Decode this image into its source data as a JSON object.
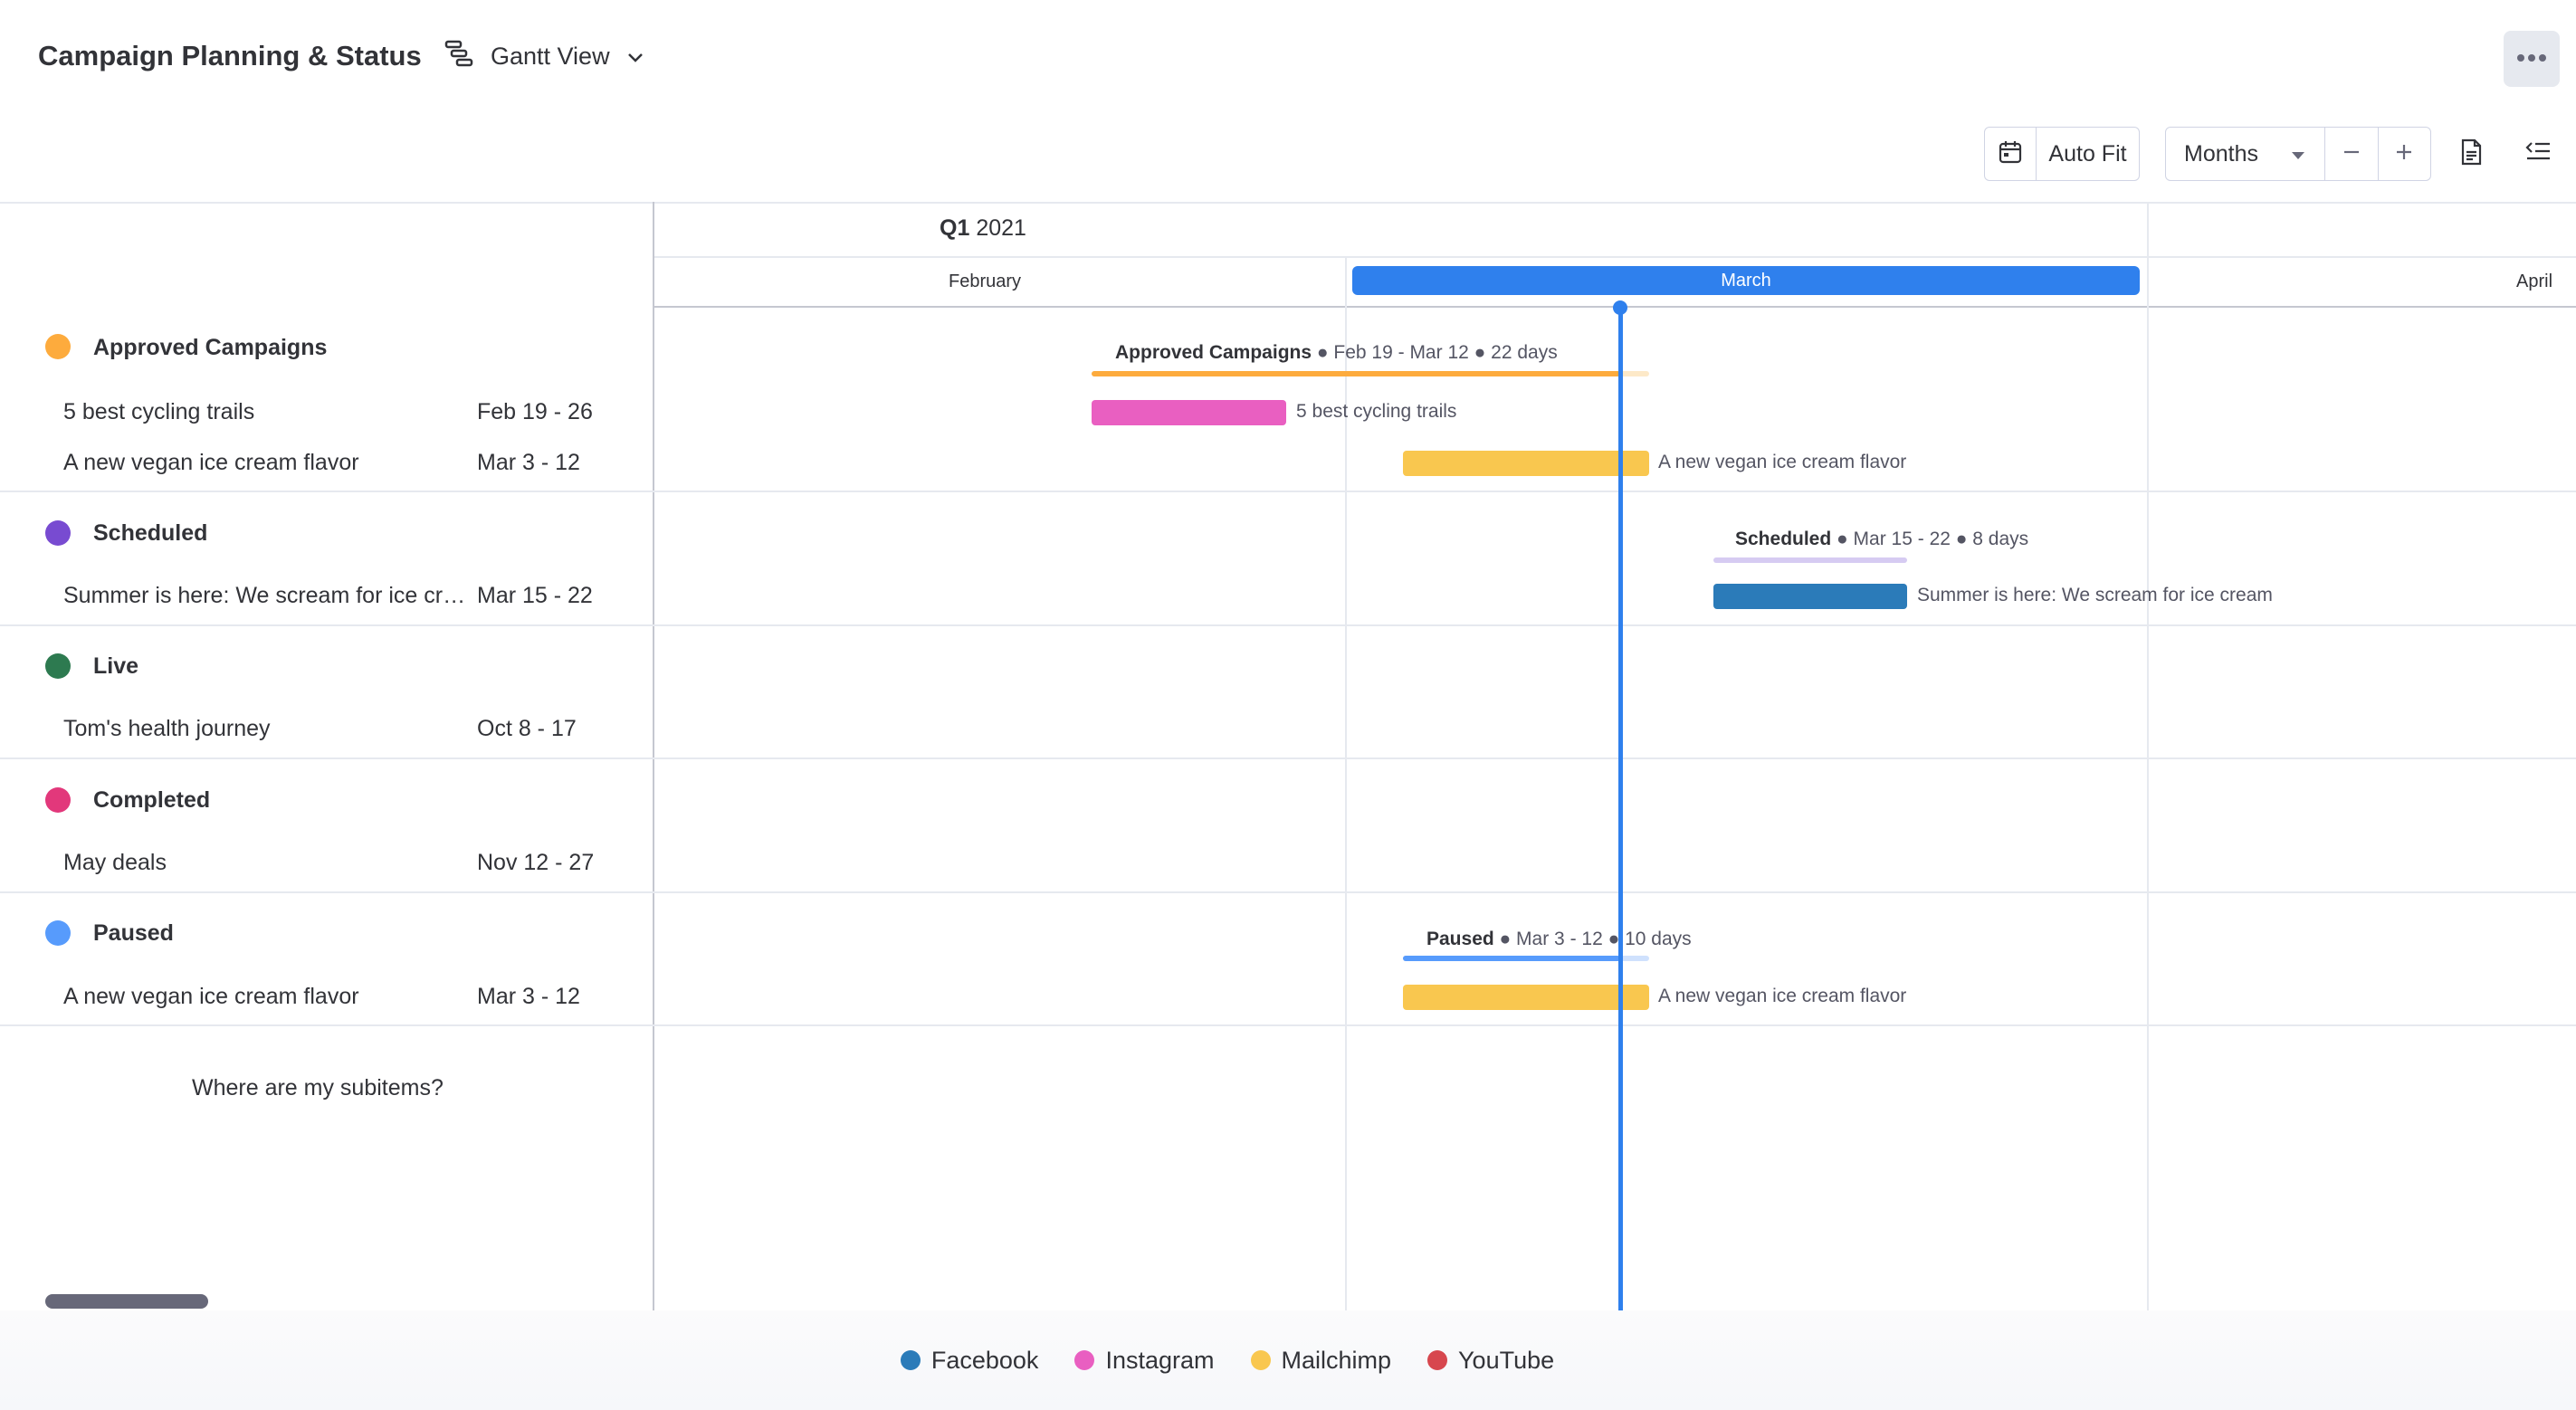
{
  "header": {
    "title": "Campaign Planning & Status",
    "view_label": "Gantt View",
    "more_icon": "ellipsis-icon"
  },
  "toolbar": {
    "auto_fit_label": "Auto Fit",
    "scale_label": "Months",
    "zoom_out_icon": "minus-icon",
    "zoom_in_icon": "plus-icon"
  },
  "timeline": {
    "quarter": "Q1",
    "year": "2021",
    "months": [
      "February",
      "March",
      "April"
    ],
    "current_month": "March"
  },
  "groups": [
    {
      "name": "Approved Campaigns",
      "color": "#fdab3d",
      "summary": " ● Feb 19 - Mar 12 ● 22 days",
      "items": [
        {
          "name": "5 best cycling trails",
          "dates": "Feb 19 - 26",
          "color": "#e95fc1"
        },
        {
          "name": "A new vegan ice cream flavor",
          "dates": "Mar 3 - 12",
          "color": "#f9c74f"
        }
      ]
    },
    {
      "name": "Scheduled",
      "color": "#784bd1",
      "summary": " ● Mar 15 - 22 ● 8 days",
      "items": [
        {
          "name": "Summer is here: We scream for ice cre...",
          "bar_label": "Summer is here: We scream for ice cream",
          "dates": "Mar 15 - 22",
          "color": "#2b7bb9"
        }
      ]
    },
    {
      "name": "Live",
      "color": "#2d7a50",
      "items": [
        {
          "name": "Tom's health journey",
          "dates": "Oct 8 - 17"
        }
      ]
    },
    {
      "name": "Completed",
      "color": "#e2387b",
      "items": [
        {
          "name": "May deals",
          "dates": "Nov 12 - 27"
        }
      ]
    },
    {
      "name": "Paused",
      "color": "#579bfc",
      "summary": " ● Mar 3 - 12 ● 10 days",
      "items": [
        {
          "name": "A new vegan ice cream flavor",
          "dates": "Mar 3 - 12",
          "color": "#f9c74f"
        }
      ]
    }
  ],
  "subitems_link": "Where are my subitems?",
  "legend": [
    {
      "label": "Facebook",
      "color": "#2b7bb9"
    },
    {
      "label": "Instagram",
      "color": "#e95fc1"
    },
    {
      "label": "Mailchimp",
      "color": "#f9c74f"
    },
    {
      "label": "YouTube",
      "color": "#d7474e"
    }
  ]
}
